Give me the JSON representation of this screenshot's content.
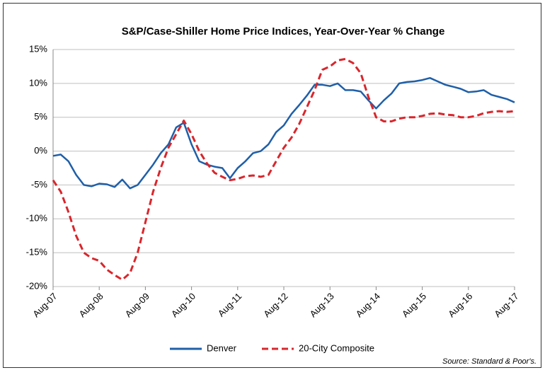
{
  "chart_data": {
    "type": "line",
    "title": "S&P/Case-Shiller Home Price Indices, Year-Over-Year % Change",
    "source": "Source: Standard & Poor's.",
    "categories": [
      "Aug-07",
      null,
      null,
      null,
      null,
      null,
      "Aug-08",
      null,
      null,
      null,
      null,
      null,
      "Aug-09",
      null,
      null,
      null,
      null,
      null,
      "Aug-10",
      null,
      null,
      null,
      null,
      null,
      "Aug-11",
      null,
      null,
      null,
      null,
      null,
      "Aug-12",
      null,
      null,
      null,
      null,
      null,
      "Aug-13",
      null,
      null,
      null,
      null,
      null,
      "Aug-14",
      null,
      null,
      null,
      null,
      null,
      "Aug-15",
      null,
      null,
      null,
      null,
      null,
      "Aug-16",
      null,
      null,
      null,
      null,
      null,
      "Aug-17"
    ],
    "series": [
      {
        "name": "Denver",
        "color": "#1f5fa8",
        "dashed": false,
        "values": [
          -0.7,
          -0.5,
          -1.5,
          -3.5,
          -5,
          -5.2,
          -4.8,
          -4.9,
          -5.3,
          -4.2,
          -5.5,
          -5.0,
          -3.5,
          -2,
          -0.3,
          1,
          3.5,
          4.2,
          1,
          -1.5,
          -2,
          -2.3,
          -2.5,
          -4,
          -2.5,
          -1.5,
          -0.3,
          0,
          1,
          2.8,
          3.8,
          5.5,
          6.8,
          8.2,
          9.8,
          9.8,
          9.6,
          10,
          9,
          9,
          8.8,
          7.5,
          6.3,
          7.5,
          8.5,
          10,
          10.2,
          10.3,
          10.5,
          10.8,
          10.3,
          9.8,
          9.5,
          9.2,
          8.7,
          8.8,
          9,
          8.3,
          8,
          7.7,
          7.2
        ]
      },
      {
        "name": "20-City Composite",
        "color": "#d9262c",
        "dashed": true,
        "values": [
          -4.3,
          -6,
          -9,
          -12.5,
          -15,
          -15.8,
          -16.2,
          -17.5,
          -18.3,
          -19,
          -18,
          -15,
          -10.5,
          -6,
          -2.5,
          0.5,
          2.5,
          4.5,
          2.5,
          0,
          -1.8,
          -3.2,
          -3.8,
          -4.3,
          -4.1,
          -3.7,
          -3.6,
          -3.8,
          -3.5,
          -1.5,
          0.5,
          2,
          4,
          6.5,
          9,
          12,
          12.5,
          13.4,
          13.6,
          13,
          11.5,
          8,
          5,
          4.4,
          4.4,
          4.8,
          5,
          5,
          5.2,
          5.5,
          5.6,
          5.4,
          5.3,
          5,
          5,
          5.2,
          5.6,
          5.8,
          5.9,
          5.8,
          5.9
        ]
      }
    ],
    "ylim": [
      -20,
      15
    ],
    "yticks": [
      {
        "value": -20,
        "label": "-20%"
      },
      {
        "value": -15,
        "label": "-15%"
      },
      {
        "value": -10,
        "label": "-10%"
      },
      {
        "value": -5,
        "label": "-5%"
      },
      {
        "value": 0,
        "label": "0%"
      },
      {
        "value": 5,
        "label": "5%"
      },
      {
        "value": 10,
        "label": "10%"
      },
      {
        "value": 15,
        "label": "15%"
      }
    ],
    "grid": true,
    "legend": "bottom"
  }
}
